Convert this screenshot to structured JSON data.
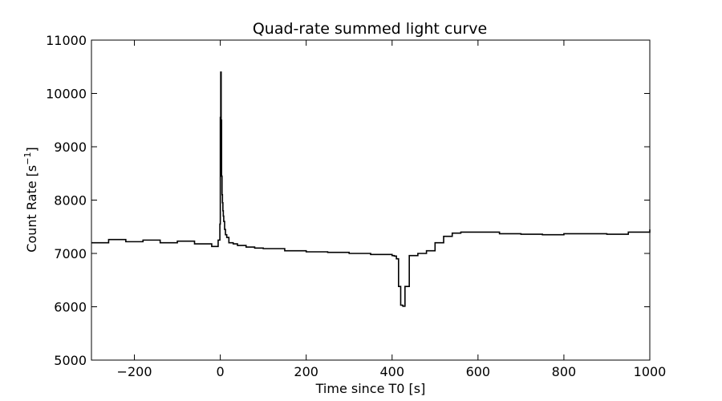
{
  "chart_data": {
    "type": "line",
    "title": "Quad-rate summed light curve",
    "xlabel": "Time since T0 [s]",
    "ylabel_main": "Count Rate [s",
    "ylabel_sup": "−1",
    "ylabel_end": "]",
    "xlim": [
      -300,
      1000
    ],
    "ylim": [
      5000,
      11000
    ],
    "xticks": [
      -200,
      0,
      200,
      400,
      600,
      800,
      1000
    ],
    "xtick_labels": [
      "−200",
      "0",
      "200",
      "400",
      "600",
      "800",
      "1000"
    ],
    "yticks": [
      5000,
      6000,
      7000,
      8000,
      9000,
      10000,
      11000
    ],
    "ytick_labels": [
      "5000",
      "6000",
      "7000",
      "8000",
      "9000",
      "10000",
      "11000"
    ],
    "grid": false,
    "line_color": "#000000",
    "series": [
      {
        "drawstyle": "steps",
        "x": [
          -300,
          -260,
          -220,
          -180,
          -140,
          -100,
          -60,
          -20,
          -5,
          -1,
          0,
          1,
          2,
          3,
          4,
          5,
          6,
          7,
          8,
          10,
          12,
          15,
          20,
          30,
          40,
          60,
          80,
          100,
          150,
          200,
          250,
          300,
          350,
          400,
          405,
          410,
          415,
          420,
          425,
          430,
          440,
          460,
          480,
          500,
          520,
          540,
          560,
          600,
          650,
          700,
          750,
          800,
          850,
          900,
          950,
          1000
        ],
        "y": [
          7200,
          7260,
          7220,
          7250,
          7200,
          7230,
          7180,
          7130,
          7250,
          7550,
          9550,
          10400,
          9500,
          8450,
          8100,
          7950,
          7800,
          7700,
          7600,
          7450,
          7350,
          7300,
          7200,
          7180,
          7150,
          7120,
          7100,
          7090,
          7050,
          7030,
          7020,
          7000,
          6980,
          6960,
          6950,
          6900,
          6380,
          6030,
          6010,
          6380,
          6960,
          7000,
          7050,
          7200,
          7320,
          7380,
          7400,
          7400,
          7370,
          7360,
          7350,
          7370,
          7370,
          7360,
          7400,
          7450
        ]
      }
    ]
  }
}
